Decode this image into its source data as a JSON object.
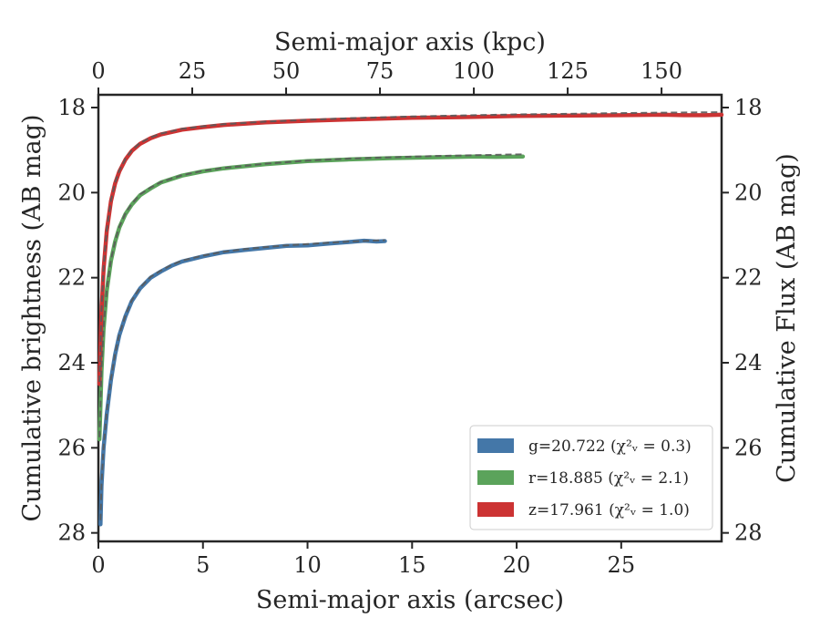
{
  "chart_data": {
    "type": "line",
    "xlabel_bottom": "Semi-major axis (arcsec)",
    "xlabel_top": "Semi-major axis (kpc)",
    "ylabel_left": "Cumulative brightness (AB mag)",
    "ylabel_right": "Cumulative Flux (AB mag)",
    "xlim": [
      0,
      29.8
    ],
    "ylim": [
      28.2,
      17.7
    ],
    "y_inverted": true,
    "xlim_top": [
      0,
      166
    ],
    "x_ticks": [
      0,
      5,
      10,
      15,
      20,
      25
    ],
    "x_ticks_top": [
      0,
      25,
      50,
      75,
      100,
      125,
      150
    ],
    "y_ticks": [
      18,
      20,
      22,
      24,
      26,
      28
    ],
    "grid": false,
    "legend_position": "lower-right",
    "model_line_style": "dashed gray",
    "series": [
      {
        "name": "g",
        "legend_label": "g=20.722",
        "chi2": "(χ²ᵥ = 0.3)",
        "color": "#4477a8",
        "x": [
          0.1,
          0.15,
          0.25,
          0.4,
          0.6,
          0.8,
          1.0,
          1.3,
          1.6,
          2.0,
          2.5,
          3.0,
          3.5,
          4.0,
          5.0,
          6.0,
          7.0,
          8.0,
          9.0,
          10.0,
          11.0,
          12.0,
          12.7,
          13.0,
          13.3,
          13.7
        ],
        "y": [
          27.8,
          26.9,
          26.0,
          25.2,
          24.4,
          23.8,
          23.35,
          22.9,
          22.55,
          22.25,
          22.0,
          21.85,
          21.72,
          21.62,
          21.5,
          21.4,
          21.35,
          21.3,
          21.25,
          21.24,
          21.2,
          21.16,
          21.13,
          21.14,
          21.15,
          21.14
        ]
      },
      {
        "name": "r",
        "legend_label": "r=18.885",
        "chi2": "(χ²ᵥ = 2.1)",
        "color": "#5ba35b",
        "x": [
          0.05,
          0.1,
          0.15,
          0.25,
          0.4,
          0.6,
          0.8,
          1.0,
          1.3,
          1.6,
          2.0,
          2.5,
          3.0,
          4.0,
          5.0,
          6.0,
          8.0,
          10.0,
          12.0,
          14.0,
          16.0,
          18.0,
          19.0,
          20.3
        ],
        "y": [
          25.8,
          25.0,
          24.2,
          23.2,
          22.3,
          21.6,
          21.15,
          20.82,
          20.5,
          20.28,
          20.06,
          19.9,
          19.76,
          19.6,
          19.5,
          19.43,
          19.33,
          19.26,
          19.22,
          19.19,
          19.17,
          19.15,
          19.16,
          19.15
        ]
      },
      {
        "name": "z",
        "legend_label": "z=17.961",
        "chi2": "(χ²ᵥ = 1.0)",
        "color": "#cc3333",
        "x": [
          0.05,
          0.1,
          0.15,
          0.25,
          0.4,
          0.6,
          0.8,
          1.0,
          1.3,
          1.6,
          2.0,
          2.5,
          3.0,
          4.0,
          5.0,
          6.0,
          8.0,
          10.0,
          12.0,
          15.0,
          18.0,
          20.0,
          22.0,
          25.0,
          27.0,
          28.0,
          29.0,
          29.8
        ],
        "y": [
          24.5,
          23.6,
          22.8,
          21.8,
          20.9,
          20.2,
          19.78,
          19.5,
          19.22,
          19.02,
          18.85,
          18.72,
          18.63,
          18.52,
          18.46,
          18.41,
          18.35,
          18.31,
          18.28,
          18.24,
          18.22,
          18.2,
          18.19,
          18.18,
          18.17,
          18.18,
          18.18,
          18.17
        ]
      }
    ],
    "models": [
      {
        "x": [
          0.1,
          0.15,
          0.25,
          0.4,
          0.6,
          0.8,
          1.0,
          1.3,
          1.6,
          2.0,
          2.5,
          3.0,
          3.5,
          4.0,
          5.0,
          6.0,
          7.0,
          8.0,
          9.0,
          10.0,
          11.0,
          12.0,
          13.0,
          13.7
        ],
        "y": [
          27.7,
          26.85,
          25.95,
          25.15,
          24.38,
          23.78,
          23.33,
          22.88,
          22.53,
          22.23,
          21.98,
          21.83,
          21.7,
          21.6,
          21.48,
          21.39,
          21.33,
          21.28,
          21.24,
          21.21,
          21.18,
          21.15,
          21.13,
          21.12
        ]
      },
      {
        "x": [
          0.05,
          0.1,
          0.15,
          0.25,
          0.4,
          0.6,
          0.8,
          1.0,
          1.3,
          1.6,
          2.0,
          2.5,
          3.0,
          4.0,
          5.0,
          6.0,
          8.0,
          10.0,
          12.0,
          14.0,
          16.0,
          18.0,
          20.3
        ],
        "y": [
          25.75,
          24.95,
          24.15,
          23.15,
          22.27,
          21.58,
          21.13,
          20.8,
          20.48,
          20.26,
          20.04,
          19.88,
          19.75,
          19.59,
          19.49,
          19.42,
          19.32,
          19.25,
          19.2,
          19.17,
          19.14,
          19.12,
          19.1
        ]
      },
      {
        "x": [
          0.05,
          0.1,
          0.15,
          0.25,
          0.4,
          0.6,
          0.8,
          1.0,
          1.3,
          1.6,
          2.0,
          2.5,
          3.0,
          4.0,
          5.0,
          6.0,
          8.0,
          10.0,
          12.0,
          15.0,
          18.0,
          20.0,
          22.0,
          25.0,
          27.0,
          29.8
        ],
        "y": [
          24.45,
          23.55,
          22.75,
          21.75,
          20.87,
          20.18,
          19.76,
          19.48,
          19.2,
          19.0,
          18.83,
          18.7,
          18.61,
          18.5,
          18.44,
          18.39,
          18.33,
          18.29,
          18.25,
          18.21,
          18.18,
          18.16,
          18.15,
          18.13,
          18.12,
          18.11
        ]
      }
    ]
  }
}
